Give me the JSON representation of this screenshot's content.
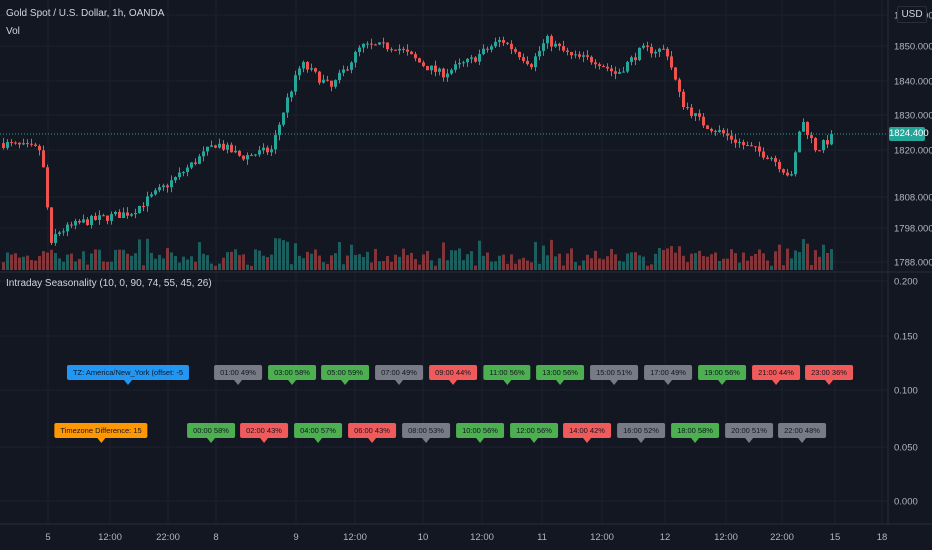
{
  "header": {
    "symbol_title": "Gold Spot / U.S. Dollar, 1h, OANDA",
    "volume_label": "Vol",
    "currency_button": "USD",
    "current_price": "1824.400"
  },
  "indicator": {
    "title": "Intraday Seasonality (10, 0, 90, 74, 55, 45, 26)"
  },
  "colors": {
    "background": "#131722",
    "grid": "#1e222d",
    "up": "#26a69a",
    "down": "#ef5350",
    "label_green": "#4caf50",
    "label_red": "#f15a5a",
    "label_gray": "#787b86",
    "label_blue": "#2196f3",
    "label_orange": "#ff9800"
  },
  "price_axis_ticks": [
    "1860.000",
    "1850.000",
    "1840.000",
    "1830.000",
    "1820.000",
    "1808.000",
    "1798.000",
    "1788.000"
  ],
  "indicator_axis_ticks": [
    "0.200",
    "0.150",
    "0.100",
    "0.050",
    "0.000"
  ],
  "time_axis_ticks": [
    "5",
    "12:00",
    "22:00",
    "8",
    "9",
    "12:00",
    "10",
    "12:00",
    "11",
    "12:00",
    "12",
    "12:00",
    "22:00",
    "15",
    "18"
  ],
  "seasonality_labels": {
    "top_row": [
      {
        "text": "TZ: America/New_York (offset: -5",
        "color": "blue"
      },
      {
        "text": "01:00 49%",
        "color": "gray"
      },
      {
        "text": "03:00 58%",
        "color": "green"
      },
      {
        "text": "05:00 59%",
        "color": "green"
      },
      {
        "text": "07:00 49%",
        "color": "gray"
      },
      {
        "text": "09:00 44%",
        "color": "red"
      },
      {
        "text": "11:00 56%",
        "color": "green"
      },
      {
        "text": "13:00 56%",
        "color": "green"
      },
      {
        "text": "15:00 51%",
        "color": "gray"
      },
      {
        "text": "17:00 49%",
        "color": "gray"
      },
      {
        "text": "19:00 56%",
        "color": "green"
      },
      {
        "text": "21:00 44%",
        "color": "red"
      },
      {
        "text": "23:00 36%",
        "color": "red"
      }
    ],
    "bottom_row": [
      {
        "text": "Timezone Difference: 15",
        "color": "orange"
      },
      {
        "text": "00:00 58%",
        "color": "green"
      },
      {
        "text": "02:00 43%",
        "color": "red"
      },
      {
        "text": "04:00 57%",
        "color": "green"
      },
      {
        "text": "06:00 43%",
        "color": "red"
      },
      {
        "text": "08:00 53%",
        "color": "gray"
      },
      {
        "text": "10:00 56%",
        "color": "green"
      },
      {
        "text": "12:00 56%",
        "color": "green"
      },
      {
        "text": "14:00 42%",
        "color": "red"
      },
      {
        "text": "16:00 52%",
        "color": "gray"
      },
      {
        "text": "18:00 58%",
        "color": "green"
      },
      {
        "text": "20:00 51%",
        "color": "gray"
      },
      {
        "text": "22:00 48%",
        "color": "gray"
      }
    ]
  }
}
